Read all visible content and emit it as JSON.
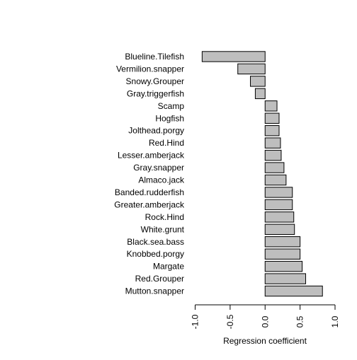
{
  "chart_data": {
    "type": "bar",
    "orientation": "horizontal",
    "categories": [
      "Blueline.Tilefish",
      "Vermilion.snapper",
      "Snowy.Grouper",
      "Gray.triggerfish",
      "Scamp",
      "Hogfish",
      "Jolthead.porgy",
      "Red.Hind",
      "Lesser.amberjack",
      "Gray.snapper",
      "Almaco.jack",
      "Banded.rudderfish",
      "Greater.amberjack",
      "Rock.Hind",
      "White.grunt",
      "Black.sea.bass",
      "Knobbed.porgy",
      "Margate",
      "Red.Grouper",
      "Mutton.snapper"
    ],
    "values": [
      -0.9,
      -0.39,
      -0.21,
      -0.14,
      0.17,
      0.2,
      0.2,
      0.22,
      0.23,
      0.27,
      0.3,
      0.39,
      0.39,
      0.41,
      0.42,
      0.5,
      0.5,
      0.53,
      0.58,
      0.82
    ],
    "title": "",
    "xlabel": "Regression coefficient",
    "ylabel": "",
    "xlim": [
      -1.0,
      1.0
    ],
    "xticks": [
      "-1.0",
      "-0.5",
      "0.0",
      "0.5",
      "1.0"
    ],
    "xtick_values": [
      -1.0,
      -0.5,
      0.0,
      0.5,
      1.0
    ],
    "grid": false,
    "legend": "none",
    "bar_color": "#bebebe",
    "bar_border_color": "#000000"
  }
}
